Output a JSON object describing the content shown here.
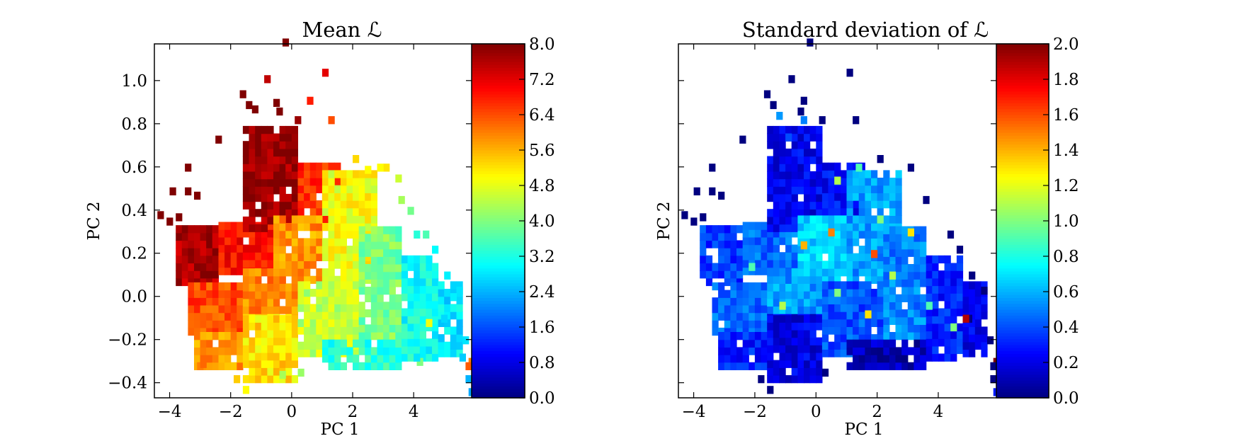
{
  "chart_data": [
    {
      "type": "heatmap",
      "title": "Mean ℒ",
      "xlabel": "PC 1",
      "ylabel": "PC 2",
      "xlim": [
        -4.5,
        5.9
      ],
      "ylim": [
        -0.47,
        1.17
      ],
      "xticks": [
        "−4",
        "−2",
        "0",
        "2",
        "4"
      ],
      "xtick_values": [
        -4,
        -2,
        0,
        2,
        4
      ],
      "yticks": [
        "−0.4",
        "−0.2",
        "0.0",
        "0.2",
        "0.4",
        "0.6",
        "0.8",
        "1.0"
      ],
      "ytick_values": [
        -0.4,
        -0.2,
        0.0,
        0.2,
        0.4,
        0.6,
        0.8,
        1.0
      ],
      "colorbar": {
        "colormap": "jet",
        "range": [
          0,
          8.0
        ],
        "ticks": [
          "0.0",
          "0.8",
          "1.6",
          "2.4",
          "3.2",
          "4.0",
          "4.8",
          "5.6",
          "6.4",
          "7.2",
          "8.0"
        ],
        "tick_values": [
          0,
          0.8,
          1.6,
          2.4,
          3.2,
          4.0,
          4.8,
          5.6,
          6.4,
          7.2,
          8.0
        ]
      },
      "bin_width_x": 0.2,
      "bin_width_y": 0.035,
      "cells": [
        [
          -0.3,
          1.16,
          8
        ],
        [
          1.0,
          1.02,
          7.2
        ],
        [
          -0.9,
          0.99,
          7.5
        ],
        [
          -1.7,
          0.92,
          8
        ],
        [
          0.5,
          0.89,
          6.8
        ],
        [
          -1.5,
          0.87,
          8
        ],
        [
          -1.3,
          0.85,
          8
        ],
        [
          -0.6,
          0.88,
          8
        ],
        [
          -0.5,
          0.84,
          8
        ],
        [
          0.1,
          0.8,
          7.8
        ],
        [
          1.2,
          0.8,
          6.4
        ],
        [
          -2.5,
          0.71,
          8
        ],
        [
          -3.5,
          0.58,
          8
        ],
        [
          -4.0,
          0.47,
          8
        ],
        [
          -3.5,
          0.47,
          8
        ],
        [
          -3.2,
          0.45,
          8
        ],
        [
          -4.4,
          0.36,
          8
        ],
        [
          -4.1,
          0.33,
          8
        ],
        [
          -3.8,
          0.35,
          8
        ],
        [
          3.0,
          0.58,
          5.2
        ],
        [
          2.8,
          0.58,
          5.0
        ],
        [
          3.4,
          0.53,
          4.6
        ],
        [
          2.0,
          0.62,
          5.3
        ],
        [
          2.4,
          0.57,
          5.0
        ],
        [
          3.5,
          0.43,
          4.3
        ],
        [
          3.8,
          0.38,
          3.9
        ],
        [
          4.3,
          0.27,
          3.6
        ],
        [
          4.0,
          0.27,
          3.3
        ],
        [
          4.6,
          0.2,
          3.0
        ],
        [
          5.0,
          0.08,
          2.9
        ],
        [
          5.4,
          0.01,
          2.8
        ],
        [
          5.2,
          -0.02,
          2.9
        ],
        [
          4.9,
          -0.12,
          2.7
        ],
        [
          4.4,
          -0.14,
          4.9
        ],
        [
          5.6,
          -0.22,
          2.8
        ],
        [
          5.8,
          -0.32,
          6.0
        ],
        [
          5.7,
          -0.34,
          6.3
        ],
        [
          5.5,
          -0.3,
          2.6
        ],
        [
          5.8,
          -0.46,
          2.3
        ],
        [
          5.7,
          -0.4,
          2.4
        ],
        [
          4.1,
          -0.32,
          4.0
        ],
        [
          4.0,
          -0.3,
          2.8
        ],
        [
          -1.9,
          -0.4,
          5.4
        ],
        [
          -1.6,
          -0.45,
          5.0
        ],
        [
          -0.4,
          -0.38,
          4.3
        ],
        [
          0.2,
          -0.37,
          4.2
        ],
        [
          -3.1,
          -0.34,
          6.0
        ],
        [
          -3.0,
          -0.33,
          6.2
        ]
      ],
      "regions": [
        {
          "x0": -3.8,
          "x1": -2.4,
          "y0": 0.05,
          "y1": 0.33,
          "value": 7.6
        },
        {
          "x0": -2.4,
          "x1": -0.6,
          "y0": 0.1,
          "y1": 0.33,
          "value": 6.9
        },
        {
          "x0": -1.6,
          "x1": 0.2,
          "y0": 0.3,
          "y1": 0.78,
          "value": 7.8
        },
        {
          "x0": 0.2,
          "x1": 1.6,
          "y0": 0.34,
          "y1": 0.62,
          "value": 6.6
        },
        {
          "x0": -3.4,
          "x1": -1.6,
          "y0": -0.18,
          "y1": 0.06,
          "value": 6.4
        },
        {
          "x0": -3.2,
          "x1": -1.6,
          "y0": -0.34,
          "y1": -0.18,
          "value": 5.8
        },
        {
          "x0": -1.6,
          "x1": 0.2,
          "y0": -0.4,
          "y1": -0.08,
          "value": 5.2
        },
        {
          "x0": -1.6,
          "x1": 0.2,
          "y0": -0.08,
          "y1": 0.12,
          "value": 5.9
        },
        {
          "x0": -0.6,
          "x1": 1.0,
          "y0": 0.06,
          "y1": 0.36,
          "value": 5.8
        },
        {
          "x0": 1.0,
          "x1": 2.8,
          "y0": 0.06,
          "y1": 0.56,
          "value": 4.9
        },
        {
          "x0": 0.2,
          "x1": 2.2,
          "y0": -0.28,
          "y1": 0.06,
          "value": 4.5
        },
        {
          "x0": 2.2,
          "x1": 3.6,
          "y0": -0.2,
          "y1": 0.3,
          "value": 3.9
        },
        {
          "x0": 1.0,
          "x1": 3.6,
          "y0": -0.34,
          "y1": -0.2,
          "value": 3.3
        },
        {
          "x0": 3.6,
          "x1": 4.8,
          "y0": -0.3,
          "y1": 0.18,
          "value": 3.1
        },
        {
          "x0": 4.8,
          "x1": 5.6,
          "y0": -0.28,
          "y1": 0.06,
          "value": 2.8
        }
      ]
    },
    {
      "type": "heatmap",
      "title": "Standard deviation of ℒ",
      "xlabel": "PC 1",
      "ylabel": "PC 2",
      "xlim": [
        -4.5,
        5.9
      ],
      "ylim": [
        -0.47,
        1.17
      ],
      "xticks": [
        "−4",
        "−2",
        "0",
        "2",
        "4"
      ],
      "xtick_values": [
        -4,
        -2,
        0,
        2,
        4
      ],
      "colorbar": {
        "colormap": "jet",
        "range": [
          0,
          2.0
        ],
        "ticks": [
          "0.0",
          "0.2",
          "0.4",
          "0.6",
          "0.8",
          "1.0",
          "1.2",
          "1.4",
          "1.6",
          "1.8",
          "2.0"
        ],
        "tick_values": [
          0,
          0.2,
          0.4,
          0.6,
          0.8,
          1.0,
          1.2,
          1.4,
          1.6,
          1.8,
          2.0
        ]
      },
      "bin_width_x": 0.2,
      "bin_width_y": 0.035,
      "cells": [
        [
          -0.3,
          1.16,
          0
        ],
        [
          1.0,
          1.02,
          0
        ],
        [
          -0.9,
          0.99,
          0
        ],
        [
          -1.7,
          0.92,
          0
        ],
        [
          -0.5,
          0.89,
          0
        ],
        [
          -1.5,
          0.87,
          0
        ],
        [
          -1.3,
          0.82,
          0.55
        ],
        [
          -0.6,
          0.84,
          0
        ],
        [
          -0.5,
          0.8,
          0.5
        ],
        [
          0.1,
          0.8,
          0
        ],
        [
          1.2,
          0.8,
          0
        ],
        [
          -2.5,
          0.71,
          0
        ],
        [
          -3.5,
          0.58,
          0
        ],
        [
          -4.0,
          0.47,
          0
        ],
        [
          -3.5,
          0.47,
          0
        ],
        [
          -3.2,
          0.45,
          0
        ],
        [
          -4.4,
          0.36,
          0
        ],
        [
          -4.1,
          0.33,
          0
        ],
        [
          -3.8,
          0.35,
          0
        ],
        [
          3.0,
          0.58,
          0
        ],
        [
          2.0,
          0.62,
          0
        ],
        [
          3.5,
          0.43,
          0
        ],
        [
          4.3,
          0.27,
          0
        ],
        [
          4.6,
          0.2,
          0
        ],
        [
          5.0,
          0.08,
          0
        ],
        [
          5.4,
          0.01,
          0
        ],
        [
          4.9,
          -0.12,
          0
        ],
        [
          5.6,
          -0.22,
          0
        ],
        [
          5.8,
          -0.32,
          2.0
        ],
        [
          5.7,
          -0.34,
          0
        ],
        [
          5.8,
          -0.46,
          0.3
        ],
        [
          5.7,
          -0.4,
          0
        ],
        [
          4.8,
          -0.12,
          1.9
        ],
        [
          -1.9,
          -0.4,
          0
        ],
        [
          -1.6,
          -0.45,
          0
        ],
        [
          0.2,
          -0.37,
          0
        ],
        [
          -1.0,
          0.72,
          0.4
        ],
        [
          0.6,
          0.52,
          1.1
        ],
        [
          1.3,
          0.58,
          0.9
        ],
        [
          -0.5,
          0.22,
          1.4
        ],
        [
          0.4,
          0.28,
          1.5
        ],
        [
          1.8,
          0.18,
          1.6
        ],
        [
          3.0,
          0.28,
          1.3
        ],
        [
          1.6,
          -0.1,
          1.3
        ],
        [
          -1.2,
          -0.06,
          1.1
        ],
        [
          0.6,
          0.0,
          1.0
        ],
        [
          2.4,
          0.08,
          1.1
        ],
        [
          3.6,
          -0.06,
          0.9
        ],
        [
          2.0,
          0.34,
          1.0
        ],
        [
          -2.2,
          0.12,
          0.9
        ],
        [
          4.4,
          -0.16,
          1.0
        ]
      ],
      "regions": [
        {
          "x0": -3.8,
          "x1": -2.4,
          "y0": 0.05,
          "y1": 0.33,
          "value": 0.35
        },
        {
          "x0": -2.4,
          "x1": -0.6,
          "y0": 0.1,
          "y1": 0.33,
          "value": 0.45
        },
        {
          "x0": -1.6,
          "x1": 0.2,
          "y0": 0.3,
          "y1": 0.78,
          "value": 0.22
        },
        {
          "x0": 0.2,
          "x1": 1.6,
          "y0": 0.34,
          "y1": 0.62,
          "value": 0.25
        },
        {
          "x0": -3.4,
          "x1": -1.6,
          "y0": -0.18,
          "y1": 0.06,
          "value": 0.45
        },
        {
          "x0": -3.2,
          "x1": -1.6,
          "y0": -0.34,
          "y1": -0.18,
          "value": 0.3
        },
        {
          "x0": -1.6,
          "x1": 0.2,
          "y0": -0.4,
          "y1": -0.08,
          "value": 0.2
        },
        {
          "x0": -1.6,
          "x1": 0.2,
          "y0": -0.08,
          "y1": 0.12,
          "value": 0.55
        },
        {
          "x0": -0.6,
          "x1": 1.0,
          "y0": 0.06,
          "y1": 0.36,
          "value": 0.65
        },
        {
          "x0": 1.0,
          "x1": 2.8,
          "y0": 0.06,
          "y1": 0.56,
          "value": 0.55
        },
        {
          "x0": 0.2,
          "x1": 2.2,
          "y0": -0.28,
          "y1": 0.06,
          "value": 0.4
        },
        {
          "x0": 2.2,
          "x1": 3.6,
          "y0": -0.2,
          "y1": 0.3,
          "value": 0.5
        },
        {
          "x0": 1.0,
          "x1": 3.6,
          "y0": -0.34,
          "y1": -0.2,
          "value": 0.1
        },
        {
          "x0": 3.6,
          "x1": 4.8,
          "y0": -0.3,
          "y1": 0.18,
          "value": 0.3
        },
        {
          "x0": 4.8,
          "x1": 5.6,
          "y0": -0.28,
          "y1": 0.06,
          "value": 0.2
        }
      ]
    }
  ]
}
